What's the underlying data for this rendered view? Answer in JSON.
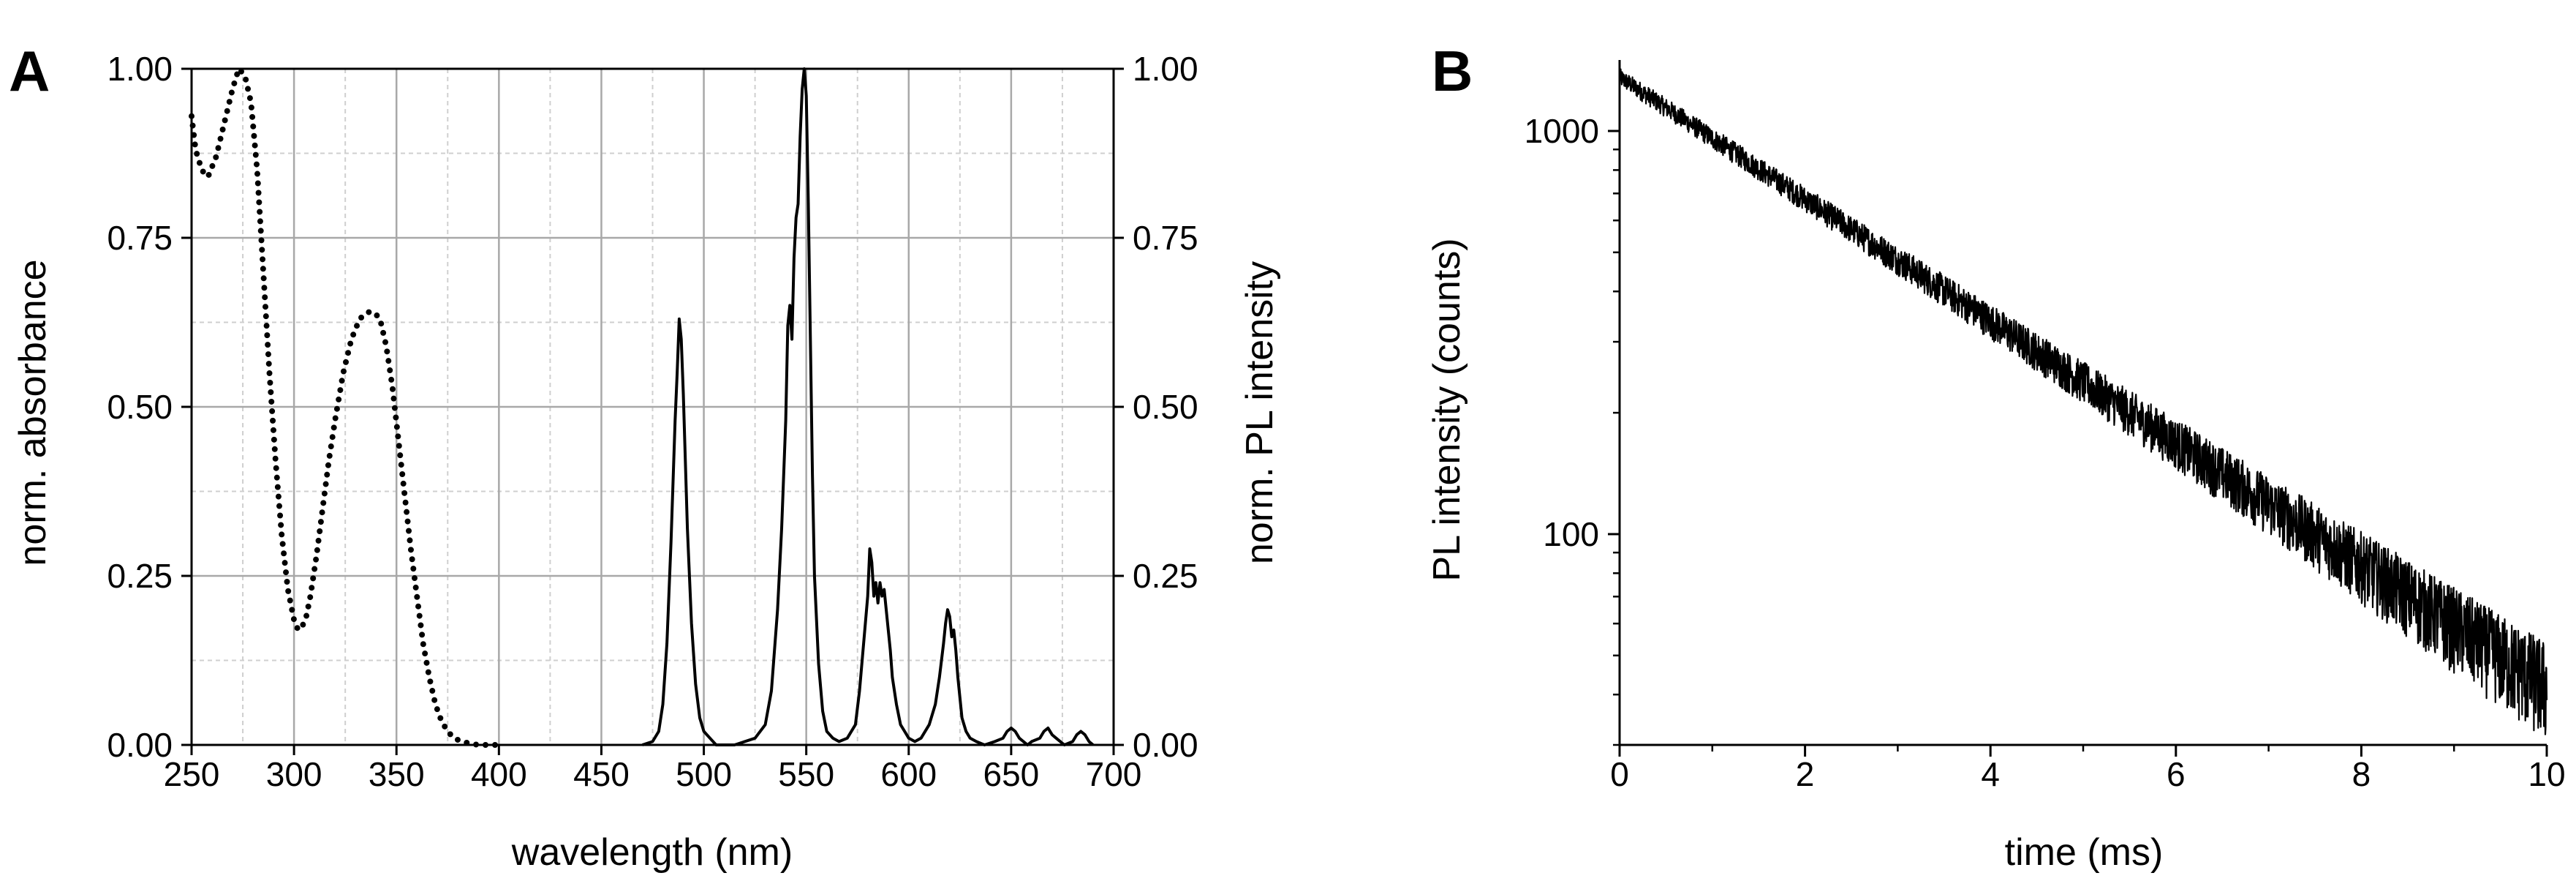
{
  "colors": {
    "line": "#000000",
    "grid_major": "#a8a8a8",
    "grid_minor": "#cfcfcf",
    "background": "#ffffff"
  },
  "chart_data": [
    {
      "panel": "A",
      "type": "line",
      "xlabel": "wavelength (nm)",
      "ylabel": "norm. absorbance",
      "y2label": "norm. PL intensity",
      "xlim": [
        250,
        700
      ],
      "ylim": [
        0,
        1
      ],
      "y2lim": [
        0,
        1
      ],
      "xticks": [
        "250",
        "300",
        "350",
        "400",
        "450",
        "500",
        "550",
        "600",
        "650",
        "700"
      ],
      "yticks": [
        "0.00",
        "0.25",
        "0.50",
        "0.75",
        "1.00"
      ],
      "y2ticks": [
        "0.00",
        "0.25",
        "0.50",
        "0.75",
        "1.00"
      ],
      "grid": true,
      "series": [
        {
          "style": "dotted",
          "axis": "left",
          "x": [
            250,
            252,
            255,
            258,
            262,
            266,
            270,
            273,
            276,
            279,
            282,
            285,
            288,
            291,
            294,
            297,
            300,
            302,
            304,
            306,
            308,
            311,
            314,
            317,
            320,
            324,
            328,
            332,
            336,
            339,
            342,
            345,
            348,
            351,
            354,
            357,
            360,
            363,
            366,
            369,
            372,
            375,
            378,
            382,
            386,
            390,
            395,
            400
          ],
          "y": [
            0.93,
            0.88,
            0.85,
            0.84,
            0.87,
            0.92,
            0.97,
            1.0,
            0.99,
            0.95,
            0.85,
            0.7,
            0.55,
            0.42,
            0.31,
            0.23,
            0.185,
            0.17,
            0.175,
            0.19,
            0.22,
            0.28,
            0.35,
            0.42,
            0.48,
            0.55,
            0.6,
            0.63,
            0.64,
            0.64,
            0.63,
            0.59,
            0.53,
            0.45,
            0.37,
            0.29,
            0.22,
            0.15,
            0.1,
            0.06,
            0.035,
            0.02,
            0.01,
            0.005,
            0.002,
            0.0,
            0.0,
            0.0
          ]
        },
        {
          "style": "solid",
          "axis": "right",
          "x": [
            470,
            475,
            478,
            480,
            482,
            484,
            486,
            487,
            488,
            489,
            490,
            491,
            492,
            494,
            496,
            498,
            500,
            503,
            506,
            510,
            515,
            520,
            525,
            530,
            533,
            536,
            538,
            540,
            541,
            542,
            543,
            544,
            545,
            546,
            547,
            548,
            549,
            550,
            551,
            552,
            553,
            554,
            556,
            558,
            560,
            563,
            566,
            570,
            574,
            576,
            578,
            580,
            581,
            582,
            583,
            584,
            585,
            586,
            587,
            588,
            589,
            590,
            591,
            592,
            594,
            596,
            598,
            600,
            603,
            606,
            610,
            613,
            615,
            617,
            618,
            619,
            620,
            621,
            622,
            623,
            624,
            625,
            626,
            628,
            630,
            633,
            637,
            642,
            646,
            648,
            650,
            652,
            654,
            656,
            658,
            660,
            664,
            666,
            668,
            670,
            672,
            674,
            676,
            680,
            682,
            684,
            686,
            688,
            690
          ],
          "y": [
            0.0,
            0.005,
            0.02,
            0.06,
            0.15,
            0.3,
            0.48,
            0.55,
            0.63,
            0.6,
            0.52,
            0.42,
            0.32,
            0.18,
            0.09,
            0.04,
            0.02,
            0.01,
            0.0,
            0.0,
            0.0,
            0.005,
            0.01,
            0.03,
            0.08,
            0.2,
            0.32,
            0.48,
            0.62,
            0.65,
            0.6,
            0.72,
            0.78,
            0.8,
            0.9,
            0.97,
            1.0,
            0.96,
            0.8,
            0.6,
            0.4,
            0.25,
            0.12,
            0.05,
            0.02,
            0.01,
            0.005,
            0.01,
            0.03,
            0.08,
            0.15,
            0.22,
            0.29,
            0.27,
            0.22,
            0.24,
            0.21,
            0.24,
            0.22,
            0.23,
            0.2,
            0.17,
            0.14,
            0.1,
            0.06,
            0.03,
            0.02,
            0.01,
            0.005,
            0.01,
            0.03,
            0.06,
            0.1,
            0.15,
            0.18,
            0.2,
            0.19,
            0.16,
            0.17,
            0.14,
            0.1,
            0.07,
            0.04,
            0.02,
            0.01,
            0.005,
            0.0,
            0.005,
            0.01,
            0.02,
            0.025,
            0.02,
            0.01,
            0.005,
            0.0,
            0.005,
            0.01,
            0.02,
            0.025,
            0.015,
            0.01,
            0.005,
            0.0,
            0.005,
            0.015,
            0.02,
            0.015,
            0.005,
            0.0
          ]
        }
      ]
    },
    {
      "panel": "B",
      "type": "line",
      "xlabel": "time (ms)",
      "ylabel": "PL intensity (counts)",
      "xlim": [
        0,
        10
      ],
      "ylim": [
        30,
        1500
      ],
      "yscale": "log",
      "xticks": [
        "0",
        "2",
        "4",
        "6",
        "8",
        "10"
      ],
      "yticks": [
        {
          "value": 100,
          "label": "100"
        },
        {
          "value": 1000,
          "label": "1000"
        }
      ],
      "grid": false,
      "series": [
        {
          "style": "noisy",
          "decay_start": 1360,
          "decay_end": 42,
          "x": [
            0,
            0.5,
            1,
            1.5,
            2,
            2.5,
            3,
            3.5,
            4,
            4.5,
            5,
            5.5,
            6,
            6.5,
            7,
            7.5,
            8,
            8.5,
            9,
            9.5,
            10
          ],
          "y": [
            1360,
            1150,
            960,
            810,
            680,
            570,
            480,
            400,
            335,
            285,
            240,
            200,
            168,
            141,
            118,
            100,
            84,
            70,
            59,
            50,
            42
          ]
        }
      ]
    }
  ]
}
